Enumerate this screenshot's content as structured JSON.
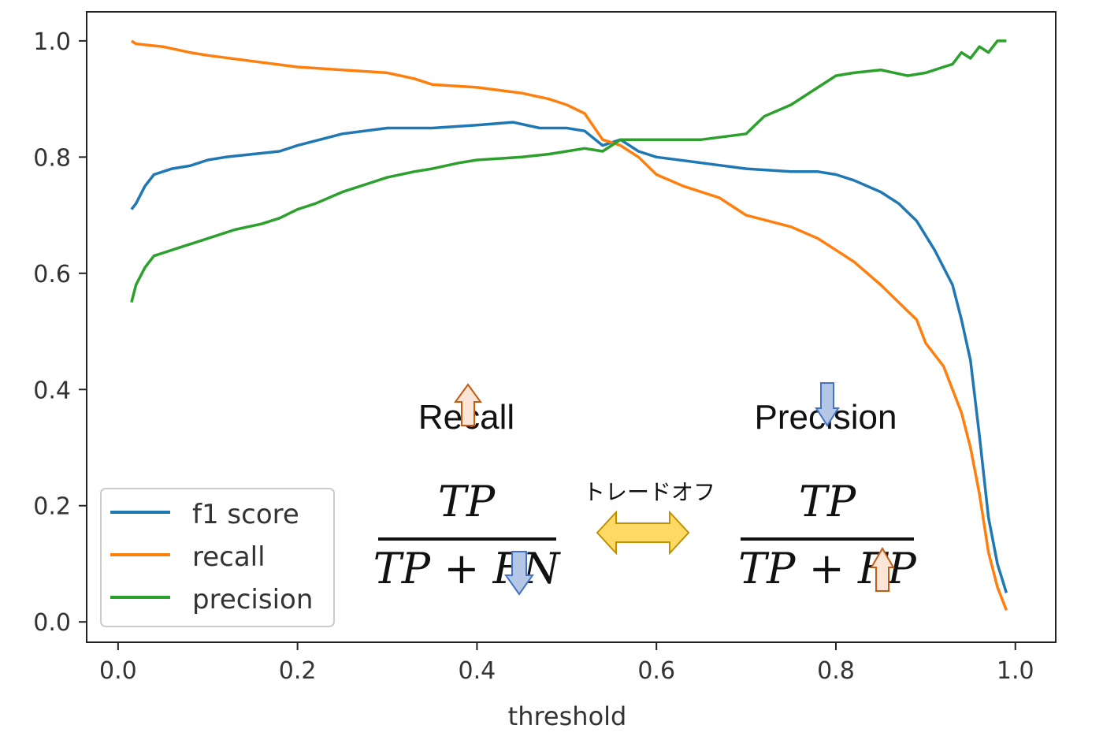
{
  "chart_data": {
    "type": "line",
    "xlabel": "threshold",
    "xlim": [
      -0.035,
      1.045
    ],
    "ylim": [
      -0.035,
      1.05
    ],
    "xticks": [
      "0.0",
      "0.2",
      "0.4",
      "0.6",
      "0.8",
      "1.0"
    ],
    "yticks": [
      "0.0",
      "0.2",
      "0.4",
      "0.6",
      "0.8",
      "1.0"
    ],
    "grid": false,
    "legend_position": "lower-left",
    "series": [
      {
        "name": "f1 score",
        "color": "#1f77b4",
        "x": [
          0.015,
          0.02,
          0.03,
          0.04,
          0.05,
          0.06,
          0.08,
          0.1,
          0.12,
          0.15,
          0.18,
          0.2,
          0.25,
          0.3,
          0.35,
          0.4,
          0.44,
          0.47,
          0.5,
          0.52,
          0.54,
          0.56,
          0.58,
          0.6,
          0.65,
          0.7,
          0.75,
          0.78,
          0.8,
          0.82,
          0.85,
          0.87,
          0.89,
          0.91,
          0.93,
          0.94,
          0.95,
          0.96,
          0.97,
          0.98,
          0.99
        ],
        "y": [
          0.71,
          0.72,
          0.75,
          0.77,
          0.775,
          0.78,
          0.785,
          0.795,
          0.8,
          0.805,
          0.81,
          0.82,
          0.84,
          0.85,
          0.85,
          0.855,
          0.86,
          0.85,
          0.85,
          0.845,
          0.82,
          0.83,
          0.81,
          0.8,
          0.79,
          0.78,
          0.775,
          0.775,
          0.77,
          0.76,
          0.74,
          0.72,
          0.69,
          0.64,
          0.58,
          0.52,
          0.45,
          0.32,
          0.18,
          0.1,
          0.05
        ]
      },
      {
        "name": "recall",
        "color": "#ff7f0e",
        "x": [
          0.015,
          0.02,
          0.05,
          0.08,
          0.1,
          0.15,
          0.2,
          0.25,
          0.3,
          0.33,
          0.35,
          0.4,
          0.45,
          0.48,
          0.5,
          0.52,
          0.54,
          0.56,
          0.58,
          0.6,
          0.63,
          0.67,
          0.7,
          0.75,
          0.78,
          0.8,
          0.82,
          0.85,
          0.87,
          0.89,
          0.9,
          0.92,
          0.93,
          0.94,
          0.95,
          0.96,
          0.97,
          0.98,
          0.99
        ],
        "y": [
          1.0,
          0.995,
          0.99,
          0.98,
          0.975,
          0.965,
          0.955,
          0.95,
          0.945,
          0.935,
          0.925,
          0.92,
          0.91,
          0.9,
          0.89,
          0.875,
          0.83,
          0.82,
          0.8,
          0.77,
          0.75,
          0.73,
          0.7,
          0.68,
          0.66,
          0.64,
          0.62,
          0.58,
          0.55,
          0.52,
          0.48,
          0.44,
          0.4,
          0.36,
          0.3,
          0.22,
          0.12,
          0.06,
          0.02
        ]
      },
      {
        "name": "precision",
        "color": "#2ca02c",
        "x": [
          0.015,
          0.02,
          0.03,
          0.04,
          0.05,
          0.07,
          0.1,
          0.13,
          0.16,
          0.18,
          0.2,
          0.22,
          0.25,
          0.28,
          0.3,
          0.33,
          0.35,
          0.38,
          0.4,
          0.45,
          0.48,
          0.5,
          0.52,
          0.54,
          0.55,
          0.56,
          0.58,
          0.6,
          0.65,
          0.7,
          0.72,
          0.75,
          0.78,
          0.8,
          0.82,
          0.85,
          0.88,
          0.9,
          0.92,
          0.93,
          0.94,
          0.95,
          0.96,
          0.97,
          0.98,
          0.99
        ],
        "y": [
          0.55,
          0.58,
          0.61,
          0.63,
          0.635,
          0.645,
          0.66,
          0.675,
          0.685,
          0.695,
          0.71,
          0.72,
          0.74,
          0.755,
          0.765,
          0.775,
          0.78,
          0.79,
          0.795,
          0.8,
          0.805,
          0.81,
          0.815,
          0.81,
          0.82,
          0.83,
          0.83,
          0.83,
          0.83,
          0.84,
          0.87,
          0.89,
          0.92,
          0.94,
          0.945,
          0.95,
          0.94,
          0.945,
          0.955,
          0.96,
          0.98,
          0.97,
          0.99,
          0.98,
          1.0,
          1.0
        ]
      }
    ]
  },
  "annotations": {
    "recall_title": "Recall",
    "precision_title": "Precision",
    "recall_formula_numerator": "TP",
    "recall_formula_denominator": "TP + FN",
    "precision_formula_numerator": "TP",
    "precision_formula_denominator": "TP + FP",
    "tradeoff_label": "トレードオフ",
    "up_arrow_color": "#c55a11",
    "up_arrow_fill": "#fbe5d6",
    "down_arrow_color": "#4472c4",
    "down_arrow_fill": "#b4c7e7",
    "tradeoff_arrow_fill": "#ffd966",
    "tradeoff_arrow_stroke": "#bf9000"
  }
}
